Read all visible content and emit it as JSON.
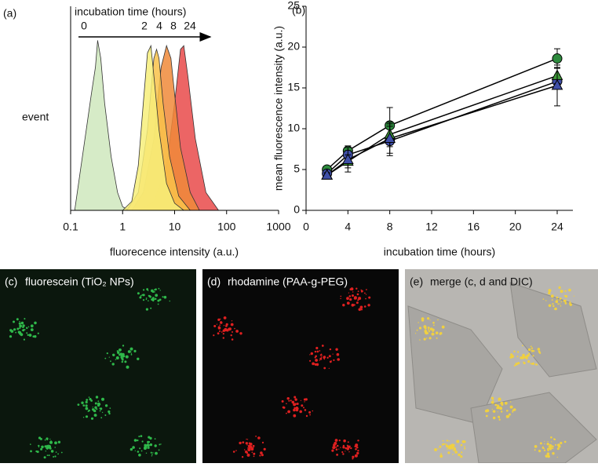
{
  "chart_data": [
    {
      "type": "area",
      "label": "(a)",
      "xlabel": "fluorecence intensity (a.u.)",
      "ylabel": "event",
      "xscale": "log",
      "xlim": [
        0.1,
        1000
      ],
      "xticks": [
        0.1,
        1,
        10,
        100,
        1000
      ],
      "ylim": [
        0,
        100
      ],
      "annotation": "incubation time (hours)",
      "series": [
        {
          "name": "0",
          "color": "#cfe8bd",
          "x": [
            0.12,
            0.15,
            0.2,
            0.25,
            0.3,
            0.33,
            0.38,
            0.45,
            0.6,
            0.8,
            1.0,
            1.3
          ],
          "values": [
            0,
            20,
            45,
            65,
            80,
            95,
            85,
            60,
            30,
            10,
            2,
            0
          ]
        },
        {
          "name": "24",
          "color": "#e94a4a",
          "x": [
            2,
            4,
            7,
            10,
            13,
            15,
            18,
            25,
            40,
            70
          ],
          "values": [
            0,
            5,
            25,
            60,
            90,
            92,
            75,
            40,
            10,
            0
          ]
        },
        {
          "name": "8",
          "color": "#f08a3a",
          "x": [
            1.5,
            2.5,
            4,
            5.5,
            7,
            8.5,
            10,
            13,
            20,
            30
          ],
          "values": [
            0,
            10,
            40,
            80,
            92,
            85,
            65,
            35,
            10,
            0
          ]
        },
        {
          "name": "4",
          "color": "#f9c24a",
          "x": [
            1.2,
            2,
            3,
            4,
            4.5,
            5,
            6,
            8,
            12,
            20
          ],
          "values": [
            0,
            10,
            45,
            85,
            90,
            85,
            60,
            30,
            8,
            0
          ]
        },
        {
          "name": "2",
          "color": "#f7ef7a",
          "x": [
            1,
            1.5,
            2,
            2.5,
            3,
            3.5,
            4,
            5,
            7,
            10,
            15
          ],
          "values": [
            0,
            5,
            25,
            60,
            88,
            92,
            75,
            45,
            15,
            4,
            0
          ]
        }
      ]
    },
    {
      "type": "line",
      "label": "(b)",
      "xlabel": "incubation time (hours)",
      "ylabel": "mean fluorescence intensity (a.u.)",
      "x": [
        2,
        4,
        8,
        24
      ],
      "xlim": [
        0,
        25.5
      ],
      "xticks": [
        0,
        4,
        8,
        12,
        16,
        20,
        24
      ],
      "ylim": [
        0,
        25
      ],
      "yticks": [
        0,
        5,
        10,
        15,
        20,
        25
      ],
      "series": [
        {
          "color": "#2e8b3e",
          "marker": "circle",
          "values": [
            5,
            7.3,
            10.4,
            18.6
          ],
          "errors": [
            0.3,
            0.6,
            2.2,
            1.2
          ]
        },
        {
          "color": "#3f4fa8",
          "marker": "circle",
          "values": [
            4.5,
            6.8,
            8.5,
            15.8
          ],
          "errors": [
            0.3,
            0.5,
            1.8,
            0.8
          ]
        },
        {
          "color": "#3f9a3a",
          "marker": "triangle",
          "values": [
            4.3,
            6,
            9.3,
            16.5
          ],
          "errors": [
            0.3,
            0.8,
            1.5,
            1
          ]
        },
        {
          "color": "#3f4fa8",
          "marker": "triangle",
          "values": [
            4.3,
            6.2,
            8.8,
            15.3
          ],
          "errors": [
            0.3,
            1.5,
            1.8,
            2.5
          ]
        }
      ]
    }
  ],
  "panels": [
    {
      "label": "(c)",
      "text": "fluorescein (TiO₂ NPs)"
    },
    {
      "label": "(d)",
      "text": "rhodamine (PAA-g-PEG)"
    },
    {
      "label": "(e)",
      "text": "merge (c, d and DIC)"
    }
  ]
}
